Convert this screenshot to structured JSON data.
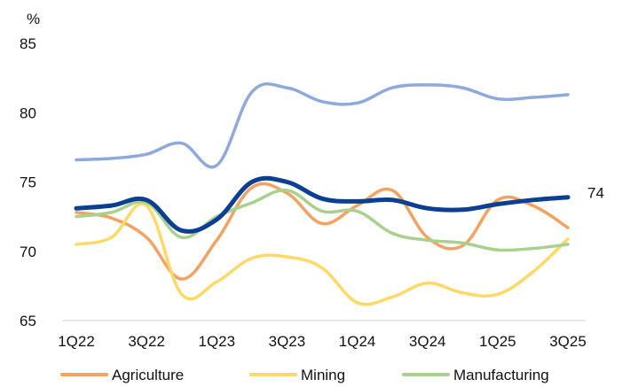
{
  "chart_data": {
    "type": "line",
    "ylabel": "%",
    "ylim": [
      65,
      85
    ],
    "yticks": [
      65,
      70,
      75,
      80,
      85
    ],
    "x": [
      "1Q22",
      "2Q22",
      "3Q22",
      "4Q22",
      "1Q23",
      "2Q23",
      "3Q23",
      "4Q23",
      "1Q24",
      "2Q24",
      "3Q24",
      "4Q24",
      "1Q25",
      "2Q25",
      "3Q25"
    ],
    "xtick_labels": [
      "1Q22",
      "3Q22",
      "1Q23",
      "3Q23",
      "1Q24",
      "3Q24",
      "1Q25",
      "3Q25"
    ],
    "series": [
      {
        "name": "",
        "color": "#8EA9DB",
        "values": [
          76.6,
          76.7,
          77.0,
          77.8,
          76.2,
          81.5,
          81.8,
          80.8,
          80.7,
          81.8,
          82.0,
          81.8,
          81.0,
          81.1,
          81.3
        ]
      },
      {
        "name": "Agriculture",
        "color": "#F4A261",
        "values": [
          72.8,
          72.4,
          71.0,
          68.0,
          70.8,
          74.6,
          74.2,
          72.0,
          73.3,
          74.4,
          71.0,
          70.4,
          73.7,
          73.3,
          71.7
        ]
      },
      {
        "name": "Mining",
        "color": "#FFD966",
        "values": [
          70.5,
          71.0,
          73.3,
          66.9,
          67.8,
          69.5,
          69.6,
          68.8,
          66.3,
          66.7,
          67.7,
          67.0,
          66.9,
          68.5,
          70.9
        ]
      },
      {
        "name": "Manufacturing",
        "color": "#A9D18E",
        "values": [
          72.5,
          72.8,
          73.5,
          71.0,
          72.5,
          73.5,
          74.4,
          72.9,
          72.9,
          71.3,
          70.8,
          70.6,
          70.1,
          70.2,
          70.5
        ]
      },
      {
        "name": "",
        "color": "#0B3F91",
        "values": [
          73.1,
          73.3,
          73.7,
          71.5,
          72.3,
          75.0,
          75.0,
          73.8,
          73.6,
          73.7,
          73.1,
          73.0,
          73.4,
          73.7,
          73.9
        ]
      }
    ],
    "annotations": [
      {
        "text": "74",
        "series_index": 4
      }
    ],
    "legend": {
      "placement": "bottom",
      "entries": [
        "Agriculture",
        "Mining",
        "Manufacturing"
      ]
    },
    "grid": false
  }
}
